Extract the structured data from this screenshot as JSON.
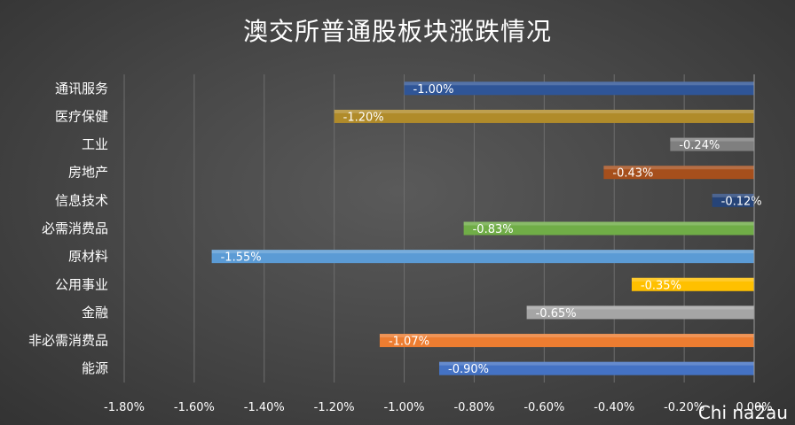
{
  "chart_data": {
    "type": "bar",
    "orientation": "horizontal",
    "title": "澳交所普通股板块涨跌情况",
    "categories": [
      "通讯服务",
      "医疗保健",
      "工业",
      "房地产",
      "信息技术",
      "必需消费品",
      "原材料",
      "公用事业",
      "金融",
      "非必需消费品",
      "能源"
    ],
    "values": [
      -1.0,
      -1.2,
      -0.24,
      -0.43,
      -0.12,
      -0.83,
      -1.55,
      -0.35,
      -0.65,
      -1.07,
      -0.9
    ],
    "value_labels": [
      "-1.00%",
      "-1.20%",
      "-0.24%",
      "-0.43%",
      "-0.12%",
      "-0.83%",
      "-1.55%",
      "-0.35%",
      "-0.65%",
      "-1.07%",
      "-0.90%"
    ],
    "colors": [
      "#2f5597",
      "#b08b2a",
      "#7f7f7f",
      "#a64f1c",
      "#264478",
      "#70ad47",
      "#5b9bd5",
      "#ffc000",
      "#a5a5a5",
      "#ed7d31",
      "#4472c4"
    ],
    "xlim": [
      -1.8,
      0
    ],
    "xticks": [
      "-1.80%",
      "-1.60%",
      "-1.40%",
      "-1.20%",
      "-1.00%",
      "-0.80%",
      "-0.60%",
      "-0.40%",
      "-0.20%",
      "0.00%"
    ],
    "xtick_values": [
      -1.8,
      -1.6,
      -1.4,
      -1.2,
      -1.0,
      -0.8,
      -0.6,
      -0.4,
      -0.2,
      0
    ],
    "grid": true,
    "legend": "none"
  },
  "watermark": "Chi na2au"
}
